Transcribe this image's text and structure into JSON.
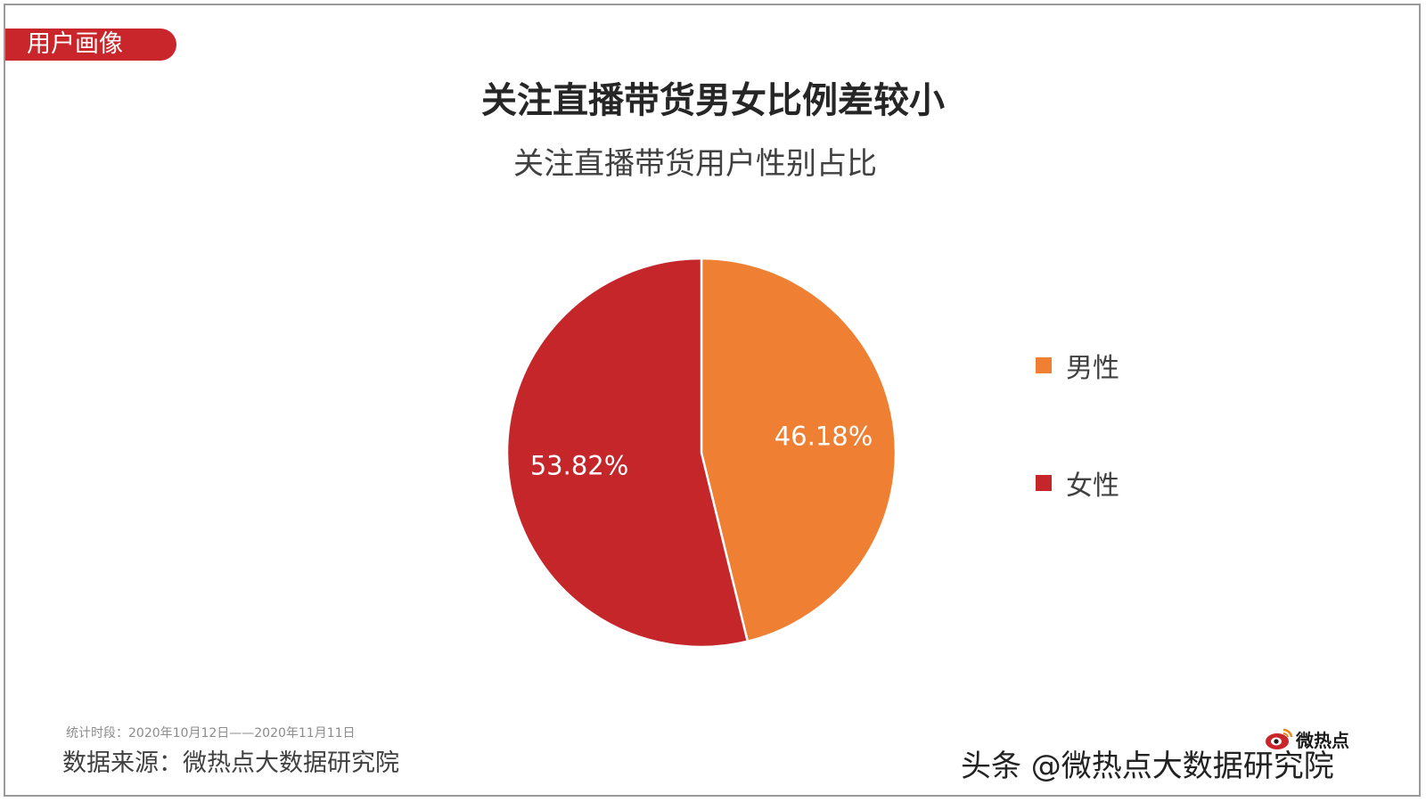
{
  "section_tag": "用户画像",
  "main_title": "关注直播带货男女比例差较小",
  "chart_data": {
    "type": "pie",
    "title": "关注直播带货用户性别占比",
    "unit": "%",
    "series": [
      {
        "name": "男性",
        "value": 46.18,
        "label": "46.18%",
        "color": "#ee7f33"
      },
      {
        "name": "女性",
        "value": 53.82,
        "label": "53.82%",
        "color": "#c4262a"
      }
    ],
    "start_angle": "12 o'clock",
    "direction": "clockwise",
    "legend_position": "right"
  },
  "footer": {
    "period": "统计时段：2020年10月12日——2020年11月11日",
    "source": "数据来源：微热点大数据研究院"
  },
  "watermark": "头条 @微热点大数据研究院",
  "logo": {
    "icon": "weibo-eye-icon",
    "text": "微热点",
    "color": "#c8262b"
  }
}
